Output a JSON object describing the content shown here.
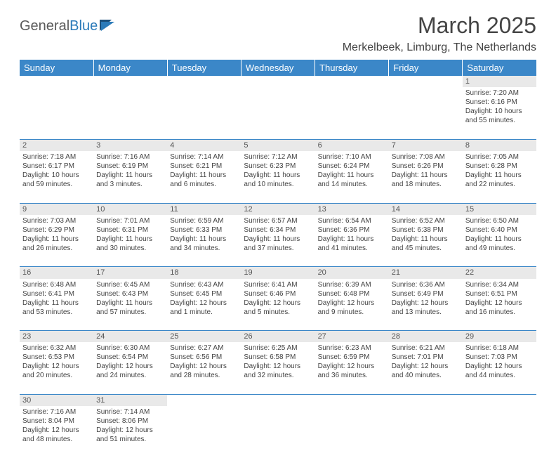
{
  "logo": {
    "text1": "General",
    "text2": "Blue",
    "color1": "#5a5a5a",
    "color2": "#2a7ab9"
  },
  "title": "March 2025",
  "location": "Merkelbeek, Limburg, The Netherlands",
  "header_bg": "#3b87c8",
  "header_fg": "#ffffff",
  "daynum_bg": "#e9e9e9",
  "border_color": "#3b87c8",
  "text_color": "#444444",
  "font_size_title": 32,
  "font_size_location": 16,
  "font_size_header": 13,
  "font_size_cell": 10,
  "days": [
    "Sunday",
    "Monday",
    "Tuesday",
    "Wednesday",
    "Thursday",
    "Friday",
    "Saturday"
  ],
  "weeks": [
    [
      null,
      null,
      null,
      null,
      null,
      null,
      {
        "n": "1",
        "sr": "Sunrise: 7:20 AM",
        "ss": "Sunset: 6:16 PM",
        "dl": "Daylight: 10 hours and 55 minutes."
      }
    ],
    [
      {
        "n": "2",
        "sr": "Sunrise: 7:18 AM",
        "ss": "Sunset: 6:17 PM",
        "dl": "Daylight: 10 hours and 59 minutes."
      },
      {
        "n": "3",
        "sr": "Sunrise: 7:16 AM",
        "ss": "Sunset: 6:19 PM",
        "dl": "Daylight: 11 hours and 3 minutes."
      },
      {
        "n": "4",
        "sr": "Sunrise: 7:14 AM",
        "ss": "Sunset: 6:21 PM",
        "dl": "Daylight: 11 hours and 6 minutes."
      },
      {
        "n": "5",
        "sr": "Sunrise: 7:12 AM",
        "ss": "Sunset: 6:23 PM",
        "dl": "Daylight: 11 hours and 10 minutes."
      },
      {
        "n": "6",
        "sr": "Sunrise: 7:10 AM",
        "ss": "Sunset: 6:24 PM",
        "dl": "Daylight: 11 hours and 14 minutes."
      },
      {
        "n": "7",
        "sr": "Sunrise: 7:08 AM",
        "ss": "Sunset: 6:26 PM",
        "dl": "Daylight: 11 hours and 18 minutes."
      },
      {
        "n": "8",
        "sr": "Sunrise: 7:05 AM",
        "ss": "Sunset: 6:28 PM",
        "dl": "Daylight: 11 hours and 22 minutes."
      }
    ],
    [
      {
        "n": "9",
        "sr": "Sunrise: 7:03 AM",
        "ss": "Sunset: 6:29 PM",
        "dl": "Daylight: 11 hours and 26 minutes."
      },
      {
        "n": "10",
        "sr": "Sunrise: 7:01 AM",
        "ss": "Sunset: 6:31 PM",
        "dl": "Daylight: 11 hours and 30 minutes."
      },
      {
        "n": "11",
        "sr": "Sunrise: 6:59 AM",
        "ss": "Sunset: 6:33 PM",
        "dl": "Daylight: 11 hours and 34 minutes."
      },
      {
        "n": "12",
        "sr": "Sunrise: 6:57 AM",
        "ss": "Sunset: 6:34 PM",
        "dl": "Daylight: 11 hours and 37 minutes."
      },
      {
        "n": "13",
        "sr": "Sunrise: 6:54 AM",
        "ss": "Sunset: 6:36 PM",
        "dl": "Daylight: 11 hours and 41 minutes."
      },
      {
        "n": "14",
        "sr": "Sunrise: 6:52 AM",
        "ss": "Sunset: 6:38 PM",
        "dl": "Daylight: 11 hours and 45 minutes."
      },
      {
        "n": "15",
        "sr": "Sunrise: 6:50 AM",
        "ss": "Sunset: 6:40 PM",
        "dl": "Daylight: 11 hours and 49 minutes."
      }
    ],
    [
      {
        "n": "16",
        "sr": "Sunrise: 6:48 AM",
        "ss": "Sunset: 6:41 PM",
        "dl": "Daylight: 11 hours and 53 minutes."
      },
      {
        "n": "17",
        "sr": "Sunrise: 6:45 AM",
        "ss": "Sunset: 6:43 PM",
        "dl": "Daylight: 11 hours and 57 minutes."
      },
      {
        "n": "18",
        "sr": "Sunrise: 6:43 AM",
        "ss": "Sunset: 6:45 PM",
        "dl": "Daylight: 12 hours and 1 minute."
      },
      {
        "n": "19",
        "sr": "Sunrise: 6:41 AM",
        "ss": "Sunset: 6:46 PM",
        "dl": "Daylight: 12 hours and 5 minutes."
      },
      {
        "n": "20",
        "sr": "Sunrise: 6:39 AM",
        "ss": "Sunset: 6:48 PM",
        "dl": "Daylight: 12 hours and 9 minutes."
      },
      {
        "n": "21",
        "sr": "Sunrise: 6:36 AM",
        "ss": "Sunset: 6:49 PM",
        "dl": "Daylight: 12 hours and 13 minutes."
      },
      {
        "n": "22",
        "sr": "Sunrise: 6:34 AM",
        "ss": "Sunset: 6:51 PM",
        "dl": "Daylight: 12 hours and 16 minutes."
      }
    ],
    [
      {
        "n": "23",
        "sr": "Sunrise: 6:32 AM",
        "ss": "Sunset: 6:53 PM",
        "dl": "Daylight: 12 hours and 20 minutes."
      },
      {
        "n": "24",
        "sr": "Sunrise: 6:30 AM",
        "ss": "Sunset: 6:54 PM",
        "dl": "Daylight: 12 hours and 24 minutes."
      },
      {
        "n": "25",
        "sr": "Sunrise: 6:27 AM",
        "ss": "Sunset: 6:56 PM",
        "dl": "Daylight: 12 hours and 28 minutes."
      },
      {
        "n": "26",
        "sr": "Sunrise: 6:25 AM",
        "ss": "Sunset: 6:58 PM",
        "dl": "Daylight: 12 hours and 32 minutes."
      },
      {
        "n": "27",
        "sr": "Sunrise: 6:23 AM",
        "ss": "Sunset: 6:59 PM",
        "dl": "Daylight: 12 hours and 36 minutes."
      },
      {
        "n": "28",
        "sr": "Sunrise: 6:21 AM",
        "ss": "Sunset: 7:01 PM",
        "dl": "Daylight: 12 hours and 40 minutes."
      },
      {
        "n": "29",
        "sr": "Sunrise: 6:18 AM",
        "ss": "Sunset: 7:03 PM",
        "dl": "Daylight: 12 hours and 44 minutes."
      }
    ],
    [
      {
        "n": "30",
        "sr": "Sunrise: 7:16 AM",
        "ss": "Sunset: 8:04 PM",
        "dl": "Daylight: 12 hours and 48 minutes."
      },
      {
        "n": "31",
        "sr": "Sunrise: 7:14 AM",
        "ss": "Sunset: 8:06 PM",
        "dl": "Daylight: 12 hours and 51 minutes."
      },
      null,
      null,
      null,
      null,
      null
    ]
  ]
}
